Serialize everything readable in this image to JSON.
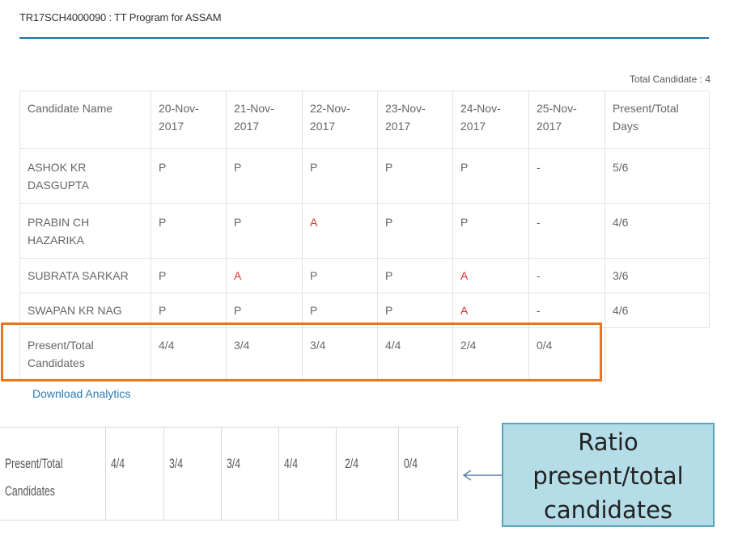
{
  "header": {
    "program_title": "TR17SCH4000090 : TT Program for ASSAM"
  },
  "summary": {
    "total_candidate": "Total Candidate : 4"
  },
  "table": {
    "columns": [
      "Candidate Name",
      "20-Nov-2017",
      "21-Nov-2017",
      "22-Nov-2017",
      "23-Nov-2017",
      "24-Nov-2017",
      "25-Nov-2017",
      "Present/Total Days"
    ],
    "rows": [
      {
        "name": "ASHOK KR DASGUPTA",
        "cells": [
          "P",
          "P",
          "P",
          "P",
          "P",
          "-"
        ],
        "ratio": "5/6"
      },
      {
        "name": "PRABIN CH HAZARIKA",
        "cells": [
          "P",
          "P",
          "A",
          "P",
          "P",
          "-"
        ],
        "ratio": "4/6"
      },
      {
        "name": "SUBRATA SARKAR",
        "cells": [
          "P",
          "A",
          "P",
          "P",
          "A",
          "-"
        ],
        "ratio": "3/6"
      },
      {
        "name": "SWAPAN KR NAG",
        "cells": [
          "P",
          "P",
          "P",
          "P",
          "A",
          "-"
        ],
        "ratio": "4/6"
      }
    ],
    "totals_label": "Present/Total Candidates",
    "totals": [
      "4/4",
      "3/4",
      "3/4",
      "4/4",
      "2/4",
      "0/4"
    ]
  },
  "links": {
    "download_analytics": "Download Analytics"
  },
  "inset": {
    "label_line1": "Present/Total",
    "label_line2": "Candidates",
    "values": [
      "4/4",
      "3/4",
      "3/4",
      "4/4",
      "2/4",
      "0/4"
    ]
  },
  "callout": {
    "line1": "Ratio",
    "line2": "present/total",
    "line3": "candidates"
  },
  "colors": {
    "accent_rule": "#1d6fa5",
    "absent": "#e0302f",
    "highlight": "#e9761f",
    "link": "#2a7ab8",
    "callout_fill": "#b4dde7"
  }
}
